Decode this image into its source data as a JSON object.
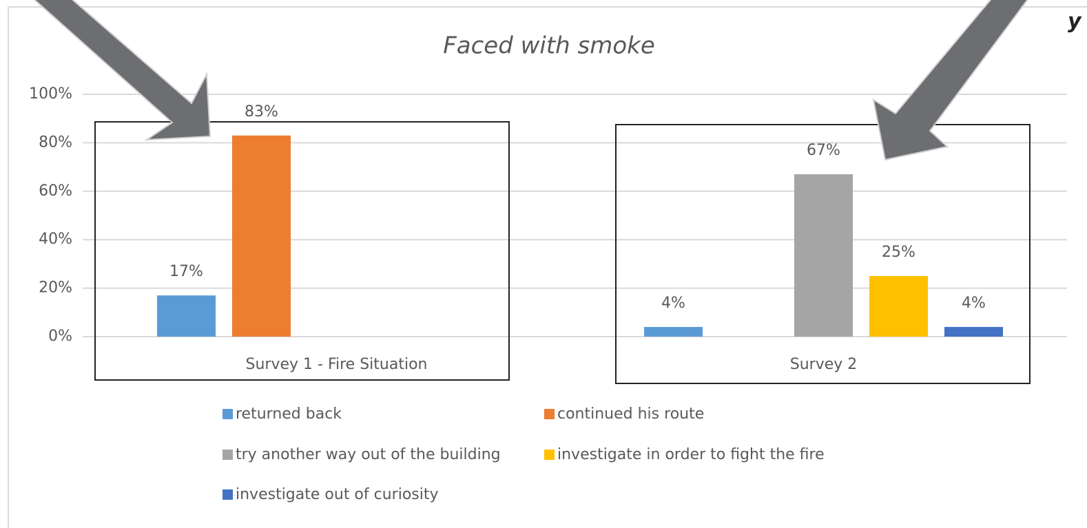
{
  "chart_data": {
    "type": "bar",
    "title": "Faced with smoke",
    "annotation": "y",
    "categories": [
      "Survey 1 - Fire Situation",
      "Survey 2"
    ],
    "series": [
      {
        "name": "returned back",
        "color": "#5b9bd5",
        "values": [
          17,
          4
        ],
        "value_labels": [
          "17%",
          "4%"
        ]
      },
      {
        "name": "continued his route",
        "color": "#ed7d31",
        "values": [
          83,
          null
        ],
        "value_labels": [
          "83%",
          null
        ]
      },
      {
        "name": "try another way out of the building",
        "color": "#a5a5a5",
        "values": [
          null,
          67
        ],
        "value_labels": [
          null,
          "67%"
        ]
      },
      {
        "name": "investigate in order to fight the fire",
        "color": "#ffc000",
        "values": [
          null,
          25
        ],
        "value_labels": [
          null,
          "25%"
        ]
      },
      {
        "name": "investigate out of curiosity",
        "color": "#4472c4",
        "values": [
          null,
          4
        ],
        "value_labels": [
          null,
          "4%"
        ]
      }
    ],
    "ylim": [
      0,
      100
    ],
    "yticks": [
      {
        "value": 0,
        "label": "0%"
      },
      {
        "value": 20,
        "label": "20%"
      },
      {
        "value": 40,
        "label": "40%"
      },
      {
        "value": 60,
        "label": "60%"
      },
      {
        "value": 80,
        "label": "80%"
      },
      {
        "value": 100,
        "label": "100%"
      }
    ],
    "grid": true
  }
}
